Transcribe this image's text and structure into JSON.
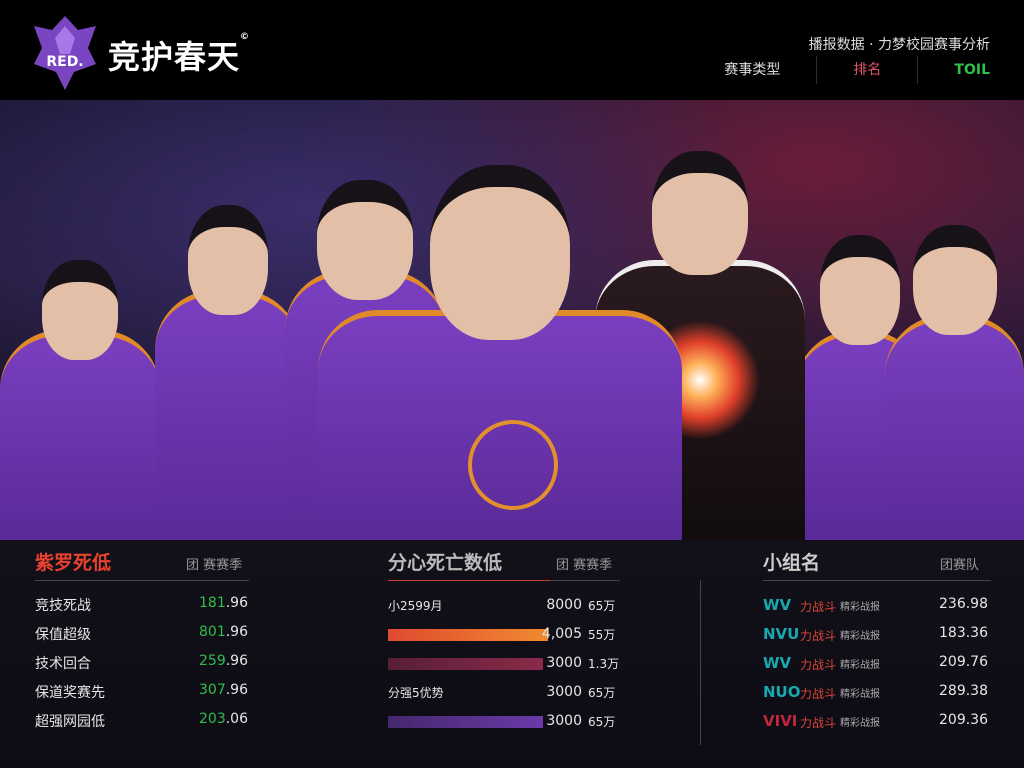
{
  "header": {
    "logo_text": "RED.",
    "brand": "竞护春天",
    "brand_mark": "©",
    "tagline": "播报数据 · 力梦校园赛事分析",
    "nav": [
      {
        "label": "赛事类型",
        "color": "#dddddd"
      },
      {
        "label": "排名",
        "color": "#e0556a"
      },
      {
        "label": "TOIL",
        "color": "#2fbf4a"
      }
    ]
  },
  "panels": {
    "left": {
      "title": "紫罗死低",
      "subtitle": "团 赛赛季",
      "title_color": "#e8412e",
      "rows": [
        {
          "label": "竞技死战",
          "value_hi": "181",
          ".value_lo": ".96",
          "value_lo": ".96"
        },
        {
          "label": "保值超级",
          "value_hi": "801",
          "value_lo": ".96"
        },
        {
          "label": "技术回合",
          "value_hi": "259",
          "value_lo": ".96"
        },
        {
          "label": "保道奖赛先",
          "value_hi": "307",
          "value_lo": ".96"
        },
        {
          "label": "超强网园低",
          "value_hi": "203",
          "value_lo": ".06"
        }
      ]
    },
    "middle": {
      "title": "分心死亡数低",
      "subtitle": "团 赛赛季",
      "rows": [
        {
          "label": "小2599月",
          "bar": 0,
          "value": "8000",
          "unit": "65万",
          "bar_color": ""
        },
        {
          "label": "",
          "bar": 1.0,
          "value": "4,005",
          "unit": "55万",
          "bar_color": "#f08a30"
        },
        {
          "label": "",
          "bar": 0.97,
          "value": "3000",
          "unit": "1.3万",
          "bar_color": "#8a2a4a"
        },
        {
          "label": "分强5优势",
          "bar": 0,
          "value": "3000",
          "unit": "65万",
          "bar_color": ""
        },
        {
          "label": "",
          "bar": 0.97,
          "value": "3000",
          "unit": "65万",
          "bar_color": "#6a3aa8"
        }
      ]
    },
    "right": {
      "title": "小组名",
      "subtitle": "团赛队",
      "rows": [
        {
          "team": "WV",
          "team_color": "#1aa8b0",
          "desc": "力战斗",
          "desc2": "精彩战报",
          "value": "236.98"
        },
        {
          "team": "NVU",
          "team_color": "#1aa8b0",
          "desc": "力战斗",
          "desc2": "精彩战报",
          "value": "183.36"
        },
        {
          "team": "WV",
          "team_color": "#1aa8b0",
          "desc": "力战斗",
          "desc2": "精彩战报",
          "value": "209.76"
        },
        {
          "team": "NUO",
          "team_color": "#1aa8b0",
          "desc": "力战斗",
          "desc2": "精彩战报",
          "value": "289.38"
        },
        {
          "team": "VIVI",
          "team_color": "#c0283a",
          "desc": "力战斗",
          "desc2": "精彩战报",
          "value": "209.36"
        }
      ]
    }
  }
}
